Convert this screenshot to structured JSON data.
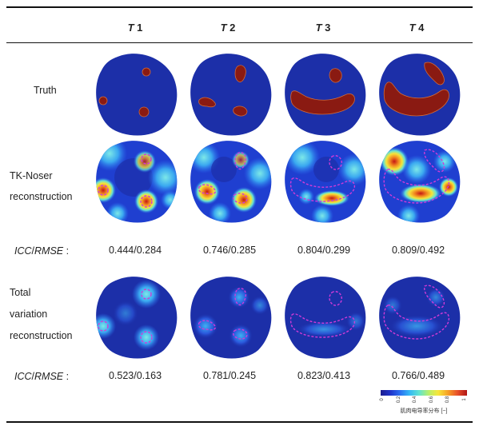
{
  "columns": [
    {
      "t": "T",
      "n": "1"
    },
    {
      "t": "T",
      "n": "2"
    },
    {
      "t": "T",
      "n": "3"
    },
    {
      "t": "T",
      "n": "4"
    }
  ],
  "rows": {
    "truth": "Truth",
    "tk_line1": "TK-Noser",
    "tk_line2": "reconstruction",
    "tv_line1": "Total",
    "tv_line2": "variation",
    "tv_line3": "reconstruction"
  },
  "metric_label": {
    "icc": "ICC",
    "slash": "/",
    "rmse": "RMSE",
    "colon_tk": " :",
    "colon_tv": " :"
  },
  "tk_metrics": [
    {
      "icc": "0.444",
      "rmse": "0.284"
    },
    {
      "icc": "0.746",
      "rmse": "0.285"
    },
    {
      "icc": "0.804",
      "rmse": "0.299"
    },
    {
      "icc": "0.809",
      "rmse": "0.492"
    }
  ],
  "tv_metrics": [
    {
      "icc": "0.523",
      "rmse": "0.163"
    },
    {
      "icc": "0.781",
      "rmse": "0.245"
    },
    {
      "icc": "0.823",
      "rmse": "0.413"
    },
    {
      "icc": "0.766",
      "rmse": "0.489"
    }
  ],
  "legend": {
    "ticks": [
      "0",
      "0.2",
      "0.4",
      "0.6",
      "0.8",
      "1"
    ],
    "label": "肌肉电导率分布 [−]"
  },
  "colors": {
    "background_blue": "#1c2fa8",
    "inclusion_red": "#8a1a12",
    "dashed_outline": "#d03ad8"
  }
}
